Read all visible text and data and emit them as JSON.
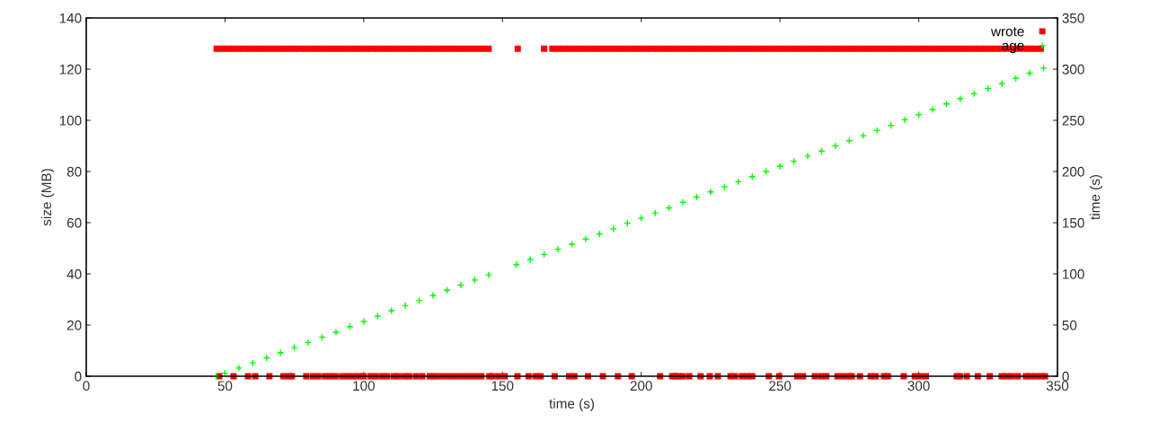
{
  "chart_data": {
    "type": "scatter",
    "xlabel": "time (s)",
    "ylabel": "size (MB)",
    "y2label": "time (s)",
    "xlim": [
      0,
      350
    ],
    "xticks": [
      0,
      50,
      100,
      150,
      200,
      250,
      300,
      350
    ],
    "ylim": [
      0,
      140
    ],
    "yticks": [
      0,
      20,
      40,
      60,
      80,
      100,
      120,
      140
    ],
    "y2lim": [
      0,
      350
    ],
    "y2ticks": [
      0,
      50,
      100,
      150,
      200,
      250,
      300,
      350
    ],
    "grid": false,
    "legend": "top right",
    "series": [
      {
        "name": "wrote",
        "color": "#ff0000",
        "marker": "square",
        "x": [
          47,
          49,
          51,
          53,
          55,
          57,
          59,
          61,
          63,
          65,
          67,
          69,
          71,
          73,
          75,
          77,
          79,
          81,
          83,
          85,
          87,
          89,
          91,
          93,
          95,
          97,
          99,
          101,
          103,
          105,
          107,
          109,
          111,
          113,
          115,
          117,
          119,
          121,
          123,
          125,
          127,
          129,
          131,
          133,
          135,
          137,
          139,
          141,
          143,
          145,
          155.5,
          165,
          168,
          170,
          172,
          174,
          176,
          178,
          180,
          182,
          184,
          186,
          188,
          190,
          192,
          194,
          196,
          198,
          200,
          202,
          204,
          206,
          208,
          210,
          212,
          214,
          216,
          218,
          220,
          222,
          224,
          226,
          228,
          230,
          232,
          234,
          236,
          238,
          240,
          242,
          244,
          246,
          248,
          250,
          252,
          254,
          256,
          258,
          260,
          262,
          264,
          266,
          268,
          270,
          272,
          274,
          276,
          278,
          280,
          282,
          284,
          286,
          288,
          290,
          292,
          294,
          296,
          298,
          300,
          302,
          304,
          306,
          308,
          310,
          312,
          314,
          316,
          318,
          320,
          322,
          324,
          326,
          328,
          330,
          332,
          334,
          336,
          338,
          340,
          342,
          344,
          47.9,
          53.1,
          58.3,
          60.9,
          66.0,
          71.1,
          73.1,
          74.1,
          79.3,
          81.7,
          83.6,
          86.0,
          88.0,
          89.8,
          92.2,
          94.3,
          96.3,
          98.2,
          100.0,
          102.5,
          104.3,
          106.5,
          108.4,
          110.8,
          112.4,
          114.6,
          116.5,
          118.9,
          121.1,
          123.8,
          125.4,
          127.5,
          129.7,
          131.9,
          134.0,
          136.2,
          138.3,
          140.3,
          142.4,
          145.3,
          146.4,
          148.6,
          150.8,
          155.4,
          159.4,
          161.9,
          163.7,
          168.8,
          174.0,
          175.9,
          180.8,
          186.2,
          191.6,
          196.6,
          206.8,
          211.2,
          212.3,
          213.4,
          215.0,
          217.3,
          221.4,
          224.7,
          227.6,
          232.2,
          233.8,
          236.3,
          238.2,
          240.0,
          246.0,
          249.7,
          256.2,
          258.3,
          262.6,
          264.8,
          266.7,
          270.7,
          272.7,
          274.8,
          275.9,
          278.8,
          282.7,
          284.5,
          287.5,
          288.9,
          294.6,
          298.6,
          300.4,
          302.6,
          313.7,
          314.8,
          317.3,
          321.3,
          325.6,
          329.9,
          331.5,
          333.5,
          335.7,
          338.6,
          340.2,
          342.0,
          344.0,
          345.5
        ],
        "values": [
          128,
          128,
          128,
          128,
          128,
          128,
          128,
          128,
          128,
          128,
          128,
          128,
          128,
          128,
          128,
          128,
          128,
          128,
          128,
          128,
          128,
          128,
          128,
          128,
          128,
          128,
          128,
          128,
          128,
          128,
          128,
          128,
          128,
          128,
          128,
          128,
          128,
          128,
          128,
          128,
          128,
          128,
          128,
          128,
          128,
          128,
          128,
          128,
          128,
          128,
          128,
          128,
          128,
          128,
          128,
          128,
          128,
          128,
          128,
          128,
          128,
          128,
          128,
          128,
          128,
          128,
          128,
          128,
          128,
          128,
          128,
          128,
          128,
          128,
          128,
          128,
          128,
          128,
          128,
          128,
          128,
          128,
          128,
          128,
          128,
          128,
          128,
          128,
          128,
          128,
          128,
          128,
          128,
          128,
          128,
          128,
          128,
          128,
          128,
          128,
          128,
          128,
          128,
          128,
          128,
          128,
          128,
          128,
          128,
          128,
          128,
          128,
          128,
          128,
          128,
          128,
          128,
          128,
          128,
          128,
          128,
          128,
          128,
          128,
          128,
          128,
          128,
          128,
          128,
          128,
          128,
          128,
          128,
          128,
          128,
          128,
          128,
          128,
          128,
          128,
          128,
          0,
          0,
          0,
          0,
          0,
          0,
          0,
          0,
          0,
          0,
          0,
          0,
          0,
          0,
          0,
          0,
          0,
          0,
          0,
          0,
          0,
          0,
          0,
          0,
          0,
          0,
          0,
          0,
          0,
          0,
          0,
          0,
          0,
          0,
          0,
          0,
          0,
          0,
          0,
          0,
          0,
          0,
          0,
          0,
          0,
          0,
          0,
          0,
          0,
          0,
          0,
          0,
          0,
          0,
          0,
          0,
          0,
          0,
          0,
          0,
          0,
          0,
          0,
          0,
          0,
          0,
          0,
          0,
          0,
          0,
          0,
          0,
          0,
          0,
          0,
          0,
          0,
          0,
          0,
          0,
          0,
          0,
          0,
          0,
          0,
          0,
          0,
          0,
          0,
          0,
          0,
          0,
          0,
          0,
          0,
          0,
          0,
          0,
          0,
          0,
          0,
          0
        ]
      },
      {
        "name": "age",
        "color": "#00ff00",
        "marker": "cross",
        "axis": "y2",
        "x": [
          47,
          50,
          55,
          60,
          65,
          70,
          75,
          80,
          85,
          90,
          95,
          100,
          105,
          110,
          115,
          120,
          125,
          130,
          135,
          140,
          145,
          155,
          160,
          165,
          170,
          175,
          180,
          185,
          190,
          195,
          200,
          205,
          210,
          215,
          220,
          225,
          230,
          235,
          240,
          245,
          250,
          255,
          260,
          265,
          270,
          275,
          280,
          285,
          290,
          295,
          300,
          305,
          310,
          315,
          320,
          325,
          330,
          335,
          340,
          345
        ],
        "values": [
          0,
          3,
          8,
          13,
          18,
          23,
          28,
          33,
          38,
          43,
          48.5,
          53.5,
          58.5,
          64,
          69,
          74,
          79,
          84,
          89,
          94,
          99,
          109,
          114,
          119,
          124,
          129,
          134,
          139,
          144,
          149.5,
          154.5,
          159.5,
          164.5,
          170,
          175,
          180,
          185,
          190,
          195,
          200,
          205,
          210,
          215,
          220,
          225,
          230,
          235,
          240,
          245,
          250.5,
          255.5,
          260.5,
          266,
          271,
          276,
          281,
          286,
          291,
          296,
          301
        ]
      }
    ]
  }
}
